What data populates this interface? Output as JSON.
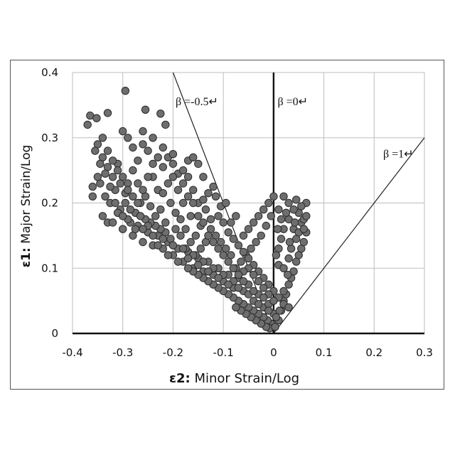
{
  "chart_data": {
    "type": "scatter",
    "title": "",
    "xlabel_bold": "ε2:",
    "xlabel_rest": " Minor Strain/Log",
    "ylabel_bold": "ε1:",
    "ylabel_rest": " Major Strain/Log",
    "xlim": [
      -0.4,
      0.3
    ],
    "ylim": [
      0,
      0.4
    ],
    "xticks": [
      "-0.4",
      "-0.3",
      "-0.2",
      "-0.1",
      "0",
      "0.1",
      "0.2",
      "0.3"
    ],
    "yticks": [
      "0",
      "0.1",
      "0.2",
      "0.3",
      "0.4"
    ],
    "grid": true,
    "marker_color": "#6e6e6e",
    "marker_edge": "#2a2a2a",
    "reference_lines": [
      {
        "label": "β =-0.5↵",
        "slope": -2
      },
      {
        "label": "β =0↵",
        "slope": null
      },
      {
        "label": "β =1↵",
        "slope": 1
      }
    ],
    "points": [
      [
        -0.365,
        0.334
      ],
      [
        -0.352,
        0.33
      ],
      [
        -0.33,
        0.338
      ],
      [
        -0.295,
        0.372
      ],
      [
        -0.255,
        0.343
      ],
      [
        -0.225,
        0.337
      ],
      [
        -0.215,
        0.32
      ],
      [
        -0.37,
        0.32
      ],
      [
        -0.35,
        0.29
      ],
      [
        -0.34,
        0.27
      ],
      [
        -0.33,
        0.255
      ],
      [
        -0.32,
        0.24
      ],
      [
        -0.31,
        0.26
      ],
      [
        -0.3,
        0.31
      ],
      [
        -0.29,
        0.3
      ],
      [
        -0.28,
        0.285
      ],
      [
        -0.27,
        0.265
      ],
      [
        -0.26,
        0.29
      ],
      [
        -0.25,
        0.28
      ],
      [
        -0.24,
        0.24
      ],
      [
        -0.23,
        0.27
      ],
      [
        -0.22,
        0.255
      ],
      [
        -0.21,
        0.27
      ],
      [
        -0.2,
        0.275
      ],
      [
        -0.19,
        0.245
      ],
      [
        -0.18,
        0.25
      ],
      [
        -0.17,
        0.265
      ],
      [
        -0.16,
        0.27
      ],
      [
        -0.15,
        0.26
      ],
      [
        -0.14,
        0.24
      ],
      [
        -0.345,
        0.23
      ],
      [
        -0.335,
        0.21
      ],
      [
        -0.325,
        0.2
      ],
      [
        -0.315,
        0.22
      ],
      [
        -0.305,
        0.19
      ],
      [
        -0.295,
        0.2
      ],
      [
        -0.285,
        0.17
      ],
      [
        -0.275,
        0.185
      ],
      [
        -0.265,
        0.2
      ],
      [
        -0.255,
        0.21
      ],
      [
        -0.245,
        0.195
      ],
      [
        -0.235,
        0.18
      ],
      [
        -0.225,
        0.19
      ],
      [
        -0.215,
        0.17
      ],
      [
        -0.205,
        0.2
      ],
      [
        -0.195,
        0.185
      ],
      [
        -0.185,
        0.175
      ],
      [
        -0.175,
        0.16
      ],
      [
        -0.165,
        0.18
      ],
      [
        -0.155,
        0.15
      ],
      [
        -0.145,
        0.165
      ],
      [
        -0.135,
        0.19
      ],
      [
        -0.125,
        0.175
      ],
      [
        -0.115,
        0.21
      ],
      [
        -0.105,
        0.195
      ],
      [
        -0.095,
        0.2
      ],
      [
        -0.085,
        0.17
      ],
      [
        -0.075,
        0.18
      ],
      [
        -0.3,
        0.16
      ],
      [
        -0.29,
        0.175
      ],
      [
        -0.28,
        0.15
      ],
      [
        -0.27,
        0.165
      ],
      [
        -0.26,
        0.14
      ],
      [
        -0.25,
        0.155
      ],
      [
        -0.24,
        0.135
      ],
      [
        -0.23,
        0.15
      ],
      [
        -0.22,
        0.13
      ],
      [
        -0.21,
        0.14
      ],
      [
        -0.2,
        0.12
      ],
      [
        -0.19,
        0.13
      ],
      [
        -0.18,
        0.11
      ],
      [
        -0.17,
        0.125
      ],
      [
        -0.16,
        0.1
      ],
      [
        -0.15,
        0.115
      ],
      [
        -0.14,
        0.095
      ],
      [
        -0.13,
        0.11
      ],
      [
        -0.12,
        0.09
      ],
      [
        -0.11,
        0.1
      ],
      [
        -0.1,
        0.08
      ],
      [
        -0.09,
        0.09
      ],
      [
        -0.08,
        0.07
      ],
      [
        -0.07,
        0.085
      ],
      [
        -0.06,
        0.065
      ],
      [
        -0.05,
        0.075
      ],
      [
        -0.04,
        0.05
      ],
      [
        -0.03,
        0.06
      ],
      [
        -0.02,
        0.04
      ],
      [
        -0.01,
        0.045
      ],
      [
        0.0,
        0.03
      ],
      [
        -0.005,
        0.015
      ],
      [
        -0.012,
        0.02
      ],
      [
        -0.02,
        0.025
      ],
      [
        -0.03,
        0.03
      ],
      [
        -0.04,
        0.035
      ],
      [
        -0.05,
        0.04
      ],
      [
        -0.06,
        0.045
      ],
      [
        -0.07,
        0.05
      ],
      [
        -0.08,
        0.055
      ],
      [
        -0.09,
        0.06
      ],
      [
        -0.1,
        0.065
      ],
      [
        -0.11,
        0.07
      ],
      [
        -0.12,
        0.075
      ],
      [
        -0.13,
        0.08
      ],
      [
        -0.14,
        0.085
      ],
      [
        -0.15,
        0.09
      ],
      [
        -0.16,
        0.095
      ],
      [
        -0.17,
        0.1
      ],
      [
        -0.008,
        0.008
      ],
      [
        0.003,
        0.01
      ],
      [
        0.01,
        0.02
      ],
      [
        0.015,
        0.035
      ],
      [
        0.02,
        0.05
      ],
      [
        0.025,
        0.06
      ],
      [
        0.03,
        0.075
      ],
      [
        0.035,
        0.085
      ],
      [
        0.04,
        0.095
      ],
      [
        0.045,
        0.11
      ],
      [
        0.05,
        0.12
      ],
      [
        0.055,
        0.13
      ],
      [
        0.06,
        0.14
      ],
      [
        0.065,
        0.155
      ],
      [
        0.055,
        0.17
      ],
      [
        0.05,
        0.185
      ],
      [
        0.04,
        0.19
      ],
      [
        0.03,
        0.175
      ],
      [
        0.02,
        0.16
      ],
      [
        0.015,
        0.145
      ],
      [
        0.01,
        0.13
      ],
      [
        0.005,
        0.12
      ],
      [
        0.01,
        0.105
      ],
      [
        0.02,
        0.1
      ],
      [
        0.03,
        0.115
      ],
      [
        0.035,
        0.13
      ],
      [
        0.045,
        0.145
      ],
      [
        0.04,
        0.16
      ],
      [
        0.0,
        0.21
      ],
      [
        -0.01,
        0.2
      ],
      [
        -0.02,
        0.19
      ],
      [
        -0.03,
        0.18
      ],
      [
        -0.04,
        0.17
      ],
      [
        -0.05,
        0.16
      ],
      [
        -0.06,
        0.15
      ],
      [
        0.065,
        0.2
      ],
      [
        0.06,
        0.175
      ],
      [
        0.03,
        0.2
      ],
      [
        0.02,
        0.21
      ],
      [
        0.01,
        0.19
      ],
      [
        -0.005,
        0.18
      ],
      [
        -0.015,
        0.165
      ],
      [
        -0.025,
        0.15
      ],
      [
        -0.035,
        0.14
      ],
      [
        -0.045,
        0.13
      ],
      [
        -0.055,
        0.12
      ],
      [
        -0.065,
        0.11
      ],
      [
        -0.075,
        0.1
      ],
      [
        -0.085,
        0.12
      ],
      [
        -0.095,
        0.13
      ],
      [
        -0.105,
        0.14
      ],
      [
        -0.115,
        0.15
      ],
      [
        -0.125,
        0.16
      ],
      [
        -0.135,
        0.14
      ],
      [
        -0.145,
        0.13
      ],
      [
        -0.155,
        0.12
      ],
      [
        -0.165,
        0.14
      ],
      [
        -0.175,
        0.13
      ],
      [
        -0.185,
        0.15
      ],
      [
        -0.195,
        0.16
      ],
      [
        -0.205,
        0.145
      ],
      [
        -0.215,
        0.155
      ],
      [
        -0.225,
        0.16
      ],
      [
        -0.235,
        0.165
      ],
      [
        -0.245,
        0.17
      ],
      [
        -0.255,
        0.175
      ],
      [
        -0.265,
        0.18
      ],
      [
        -0.275,
        0.16
      ],
      [
        -0.285,
        0.19
      ],
      [
        -0.295,
        0.215
      ],
      [
        -0.305,
        0.23
      ],
      [
        -0.315,
        0.2
      ],
      [
        -0.325,
        0.225
      ],
      [
        -0.335,
        0.245
      ],
      [
        -0.345,
        0.26
      ],
      [
        -0.355,
        0.28
      ],
      [
        -0.36,
        0.225
      ],
      [
        -0.36,
        0.21
      ],
      [
        -0.34,
        0.18
      ],
      [
        -0.33,
        0.17
      ],
      [
        -0.32,
        0.17
      ],
      [
        -0.31,
        0.185
      ],
      [
        -0.3,
        0.18
      ],
      [
        -0.29,
        0.23
      ],
      [
        -0.28,
        0.25
      ],
      [
        -0.27,
        0.23
      ],
      [
        -0.26,
        0.22
      ],
      [
        -0.25,
        0.24
      ],
      [
        -0.24,
        0.26
      ],
      [
        -0.23,
        0.22
      ],
      [
        -0.22,
        0.215
      ],
      [
        -0.21,
        0.23
      ],
      [
        -0.2,
        0.24
      ],
      [
        -0.19,
        0.22
      ],
      [
        -0.18,
        0.2
      ],
      [
        -0.17,
        0.21
      ],
      [
        -0.16,
        0.22
      ],
      [
        -0.15,
        0.2
      ],
      [
        -0.14,
        0.205
      ],
      [
        -0.13,
        0.215
      ],
      [
        -0.12,
        0.225
      ],
      [
        -0.11,
        0.18
      ],
      [
        -0.1,
        0.17
      ],
      [
        -0.09,
        0.155
      ],
      [
        -0.08,
        0.145
      ],
      [
        -0.07,
        0.135
      ],
      [
        -0.06,
        0.125
      ],
      [
        -0.05,
        0.115
      ],
      [
        -0.04,
        0.105
      ],
      [
        -0.03,
        0.095
      ],
      [
        -0.02,
        0.085
      ],
      [
        -0.01,
        0.075
      ],
      [
        0.0,
        0.065
      ],
      [
        0.01,
        0.055
      ],
      [
        0.02,
        0.045
      ],
      [
        0.03,
        0.04
      ],
      [
        0.0,
        0.05
      ],
      [
        -0.01,
        0.06
      ],
      [
        -0.02,
        0.07
      ],
      [
        -0.03,
        0.08
      ],
      [
        -0.04,
        0.09
      ],
      [
        -0.05,
        0.1
      ],
      [
        -0.06,
        0.095
      ],
      [
        -0.07,
        0.07
      ],
      [
        -0.08,
        0.08
      ],
      [
        -0.09,
        0.075
      ],
      [
        -0.1,
        0.09
      ],
      [
        -0.11,
        0.085
      ],
      [
        -0.12,
        0.1
      ],
      [
        -0.13,
        0.095
      ],
      [
        -0.14,
        0.11
      ],
      [
        -0.15,
        0.105
      ],
      [
        -0.16,
        0.12
      ],
      [
        -0.17,
        0.115
      ],
      [
        -0.18,
        0.13
      ],
      [
        -0.19,
        0.11
      ],
      [
        -0.2,
        0.135
      ],
      [
        -0.21,
        0.12
      ],
      [
        -0.22,
        0.145
      ],
      [
        -0.23,
        0.135
      ],
      [
        -0.24,
        0.15
      ],
      [
        -0.25,
        0.165
      ],
      [
        -0.26,
        0.16
      ],
      [
        -0.27,
        0.2
      ],
      [
        -0.28,
        0.21
      ],
      [
        -0.29,
        0.22
      ],
      [
        -0.3,
        0.24
      ],
      [
        -0.31,
        0.25
      ],
      [
        -0.32,
        0.265
      ],
      [
        -0.33,
        0.28
      ],
      [
        -0.34,
        0.3
      ],
      [
        -0.35,
        0.24
      ],
      [
        -0.26,
        0.31
      ],
      [
        -0.24,
        0.3
      ],
      [
        -0.22,
        0.285
      ],
      [
        -0.2,
        0.26
      ],
      [
        -0.18,
        0.23
      ],
      [
        -0.17,
        0.24
      ],
      [
        -0.16,
        0.2
      ],
      [
        -0.15,
        0.18
      ],
      [
        -0.14,
        0.17
      ],
      [
        -0.13,
        0.15
      ],
      [
        -0.12,
        0.14
      ],
      [
        -0.11,
        0.13
      ],
      [
        -0.1,
        0.12
      ],
      [
        -0.09,
        0.11
      ],
      [
        -0.08,
        0.1
      ],
      [
        -0.07,
        0.09
      ],
      [
        -0.06,
        0.08
      ],
      [
        -0.05,
        0.06
      ],
      [
        -0.04,
        0.065
      ],
      [
        -0.03,
        0.045
      ],
      [
        -0.02,
        0.055
      ],
      [
        -0.01,
        0.035
      ],
      [
        -0.015,
        0.01
      ],
      [
        -0.025,
        0.015
      ],
      [
        -0.035,
        0.02
      ],
      [
        -0.045,
        0.025
      ],
      [
        -0.055,
        0.03
      ],
      [
        -0.065,
        0.035
      ],
      [
        -0.075,
        0.04
      ],
      [
        0.005,
        0.025
      ],
      [
        0.012,
        0.035
      ],
      [
        0.02,
        0.065
      ],
      [
        0.028,
        0.09
      ],
      [
        0.032,
        0.14
      ],
      [
        0.042,
        0.17
      ],
      [
        0.05,
        0.155
      ],
      [
        0.06,
        0.16
      ],
      [
        0.065,
        0.18
      ],
      [
        0.055,
        0.195
      ],
      [
        0.045,
        0.205
      ],
      [
        0.025,
        0.185
      ],
      [
        0.015,
        0.175
      ],
      [
        0.008,
        0.16
      ]
    ]
  }
}
